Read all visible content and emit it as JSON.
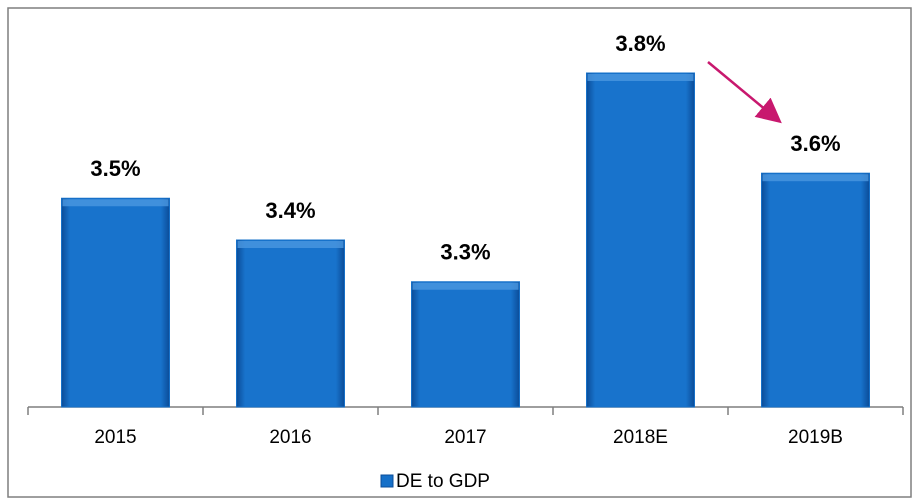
{
  "chart_data": {
    "type": "bar",
    "categories": [
      "2015",
      "2016",
      "2017",
      "2018E",
      "2019B"
    ],
    "series": [
      {
        "name": "DE to GDP",
        "color": "#1670c8",
        "values": [
          3.5,
          3.4,
          3.3,
          3.8,
          3.56
        ],
        "value_labels": [
          "3.5%",
          "3.4%",
          "3.3%",
          "3.8%",
          "3.6%"
        ]
      }
    ],
    "ylim": [
      3.0,
      3.8
    ]
  }
}
